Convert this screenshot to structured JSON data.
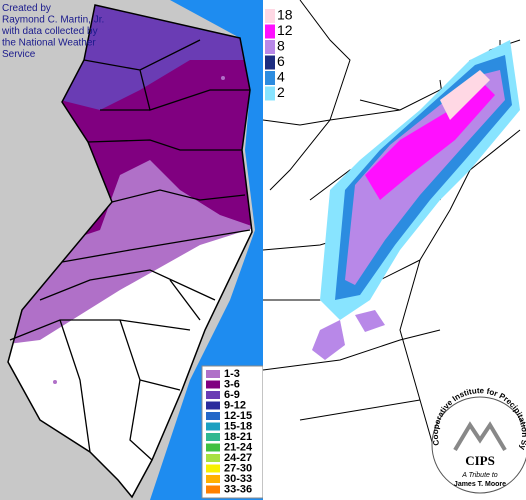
{
  "credit": {
    "lines": [
      "Created by",
      "Raymond C. Martin, Jr.",
      "with data collected by",
      "the National Weather",
      "Service"
    ]
  },
  "nj_legend": {
    "items": [
      {
        "label": "1-3",
        "color": "#b070c8"
      },
      {
        "label": "3-6",
        "color": "#800080"
      },
      {
        "label": "6-9",
        "color": "#6a3cb4"
      },
      {
        "label": "9-12",
        "color": "#2c2c9c"
      },
      {
        "label": "12-15",
        "color": "#2468c8"
      },
      {
        "label": "15-18",
        "color": "#1ca0c0"
      },
      {
        "label": "18-21",
        "color": "#30b890"
      },
      {
        "label": "21-24",
        "color": "#40c040"
      },
      {
        "label": "24-27",
        "color": "#a8e040"
      },
      {
        "label": "27-30",
        "color": "#f8f000"
      },
      {
        "label": "30-33",
        "color": "#ffb000"
      },
      {
        "label": "33-36",
        "color": "#ff8000"
      }
    ]
  },
  "snow_legend": {
    "items": [
      {
        "label": "18",
        "color": "#ffd8e4"
      },
      {
        "label": "12",
        "color": "#ff10ff"
      },
      {
        "label": "8",
        "color": "#b888e8"
      },
      {
        "label": "6",
        "color": "#1c2c80"
      },
      {
        "label": "4",
        "color": "#2c8ce0"
      },
      {
        "label": "2",
        "color": "#88e4ff"
      }
    ]
  },
  "logo": {
    "arc_text": "Cooperative Institute for Precipitation Systems",
    "name": "CIPS",
    "tribute_lines": [
      "A Tribute to",
      "James T. Moore"
    ]
  }
}
